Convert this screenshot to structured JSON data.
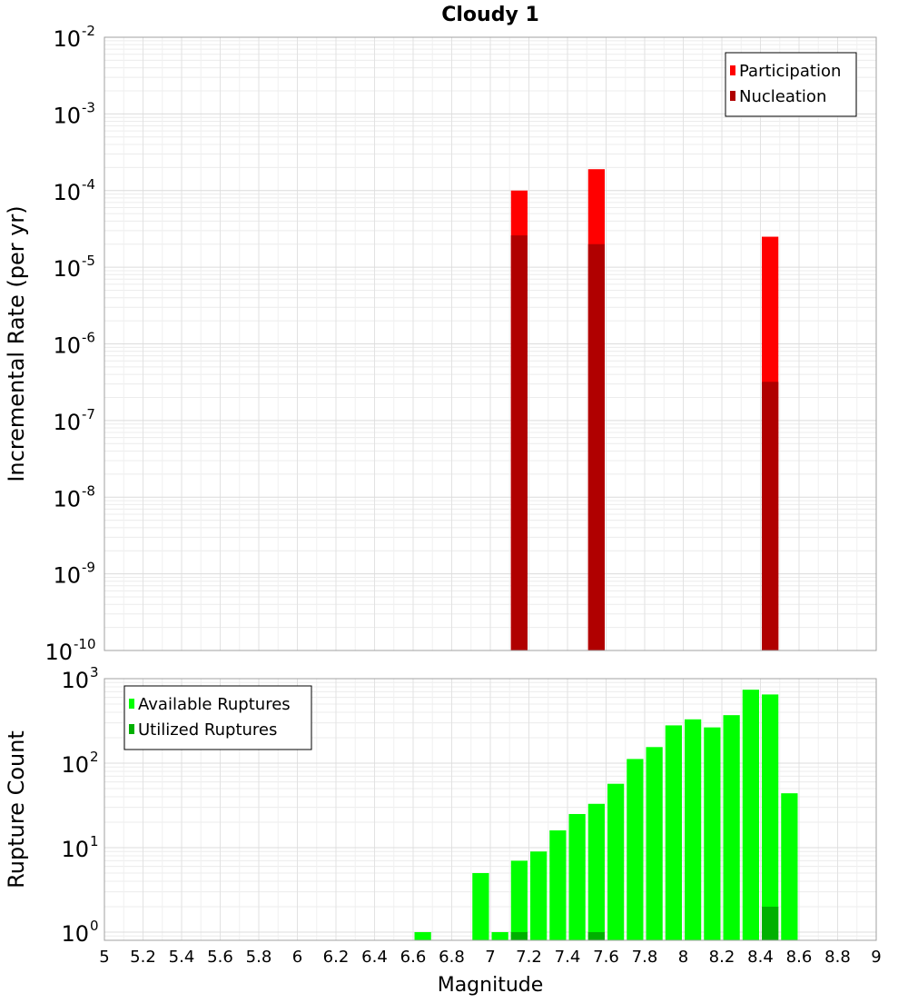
{
  "chart_data": [
    {
      "type": "bar",
      "title": "Cloudy 1",
      "xlabel": "",
      "ylabel": "Incremental Rate (per yr)",
      "yscale": "log",
      "xlim": [
        5,
        9
      ],
      "ylim": [
        1e-10,
        0.01
      ],
      "y_tick_exponents": [
        -10,
        -9,
        -8,
        -7,
        -6,
        -5,
        -4,
        -3,
        -2
      ],
      "grid": true,
      "legend_position": "top-right",
      "bin_width": 0.1,
      "series": [
        {
          "name": "Participation",
          "color": "#ff0000",
          "points": [
            {
              "x": 7.15,
              "y": 0.0001
            },
            {
              "x": 7.55,
              "y": 0.00019
            },
            {
              "x": 8.45,
              "y": 2.5e-05
            }
          ]
        },
        {
          "name": "Nucleation",
          "color": "#b00000",
          "points": [
            {
              "x": 7.15,
              "y": 2.6e-05
            },
            {
              "x": 7.55,
              "y": 2e-05
            },
            {
              "x": 8.45,
              "y": 3.2e-07
            }
          ]
        }
      ]
    },
    {
      "type": "bar",
      "title": "",
      "xlabel": "Magnitude",
      "ylabel": "Rupture Count",
      "yscale": "log",
      "xlim": [
        5,
        9
      ],
      "ylim": [
        0.8,
        1000
      ],
      "y_tick_exponents": [
        0,
        1,
        2,
        3
      ],
      "x_ticks": [
        "5",
        "5.2",
        "5.4",
        "5.6",
        "5.8",
        "6",
        "6.2",
        "6.4",
        "6.6",
        "6.8",
        "7",
        "7.2",
        "7.4",
        "7.6",
        "7.8",
        "8",
        "8.2",
        "8.4",
        "8.6",
        "8.8",
        "9"
      ],
      "grid": true,
      "legend_position": "top-left",
      "bin_width": 0.1,
      "series": [
        {
          "name": "Available Ruptures",
          "color": "#00ff00",
          "points": [
            {
              "x": 6.65,
              "y": 1
            },
            {
              "x": 6.95,
              "y": 5
            },
            {
              "x": 7.05,
              "y": 1
            },
            {
              "x": 7.15,
              "y": 7
            },
            {
              "x": 7.25,
              "y": 9
            },
            {
              "x": 7.35,
              "y": 16
            },
            {
              "x": 7.45,
              "y": 25
            },
            {
              "x": 7.55,
              "y": 33
            },
            {
              "x": 7.65,
              "y": 57
            },
            {
              "x": 7.75,
              "y": 112
            },
            {
              "x": 7.85,
              "y": 155
            },
            {
              "x": 7.95,
              "y": 280
            },
            {
              "x": 8.05,
              "y": 330
            },
            {
              "x": 8.15,
              "y": 265
            },
            {
              "x": 8.25,
              "y": 370
            },
            {
              "x": 8.35,
              "y": 740
            },
            {
              "x": 8.45,
              "y": 650
            },
            {
              "x": 8.55,
              "y": 44
            }
          ]
        },
        {
          "name": "Utilized Ruptures",
          "color": "#00b000",
          "points": [
            {
              "x": 7.15,
              "y": 1
            },
            {
              "x": 7.55,
              "y": 1
            },
            {
              "x": 8.45,
              "y": 2
            }
          ]
        }
      ]
    }
  ]
}
